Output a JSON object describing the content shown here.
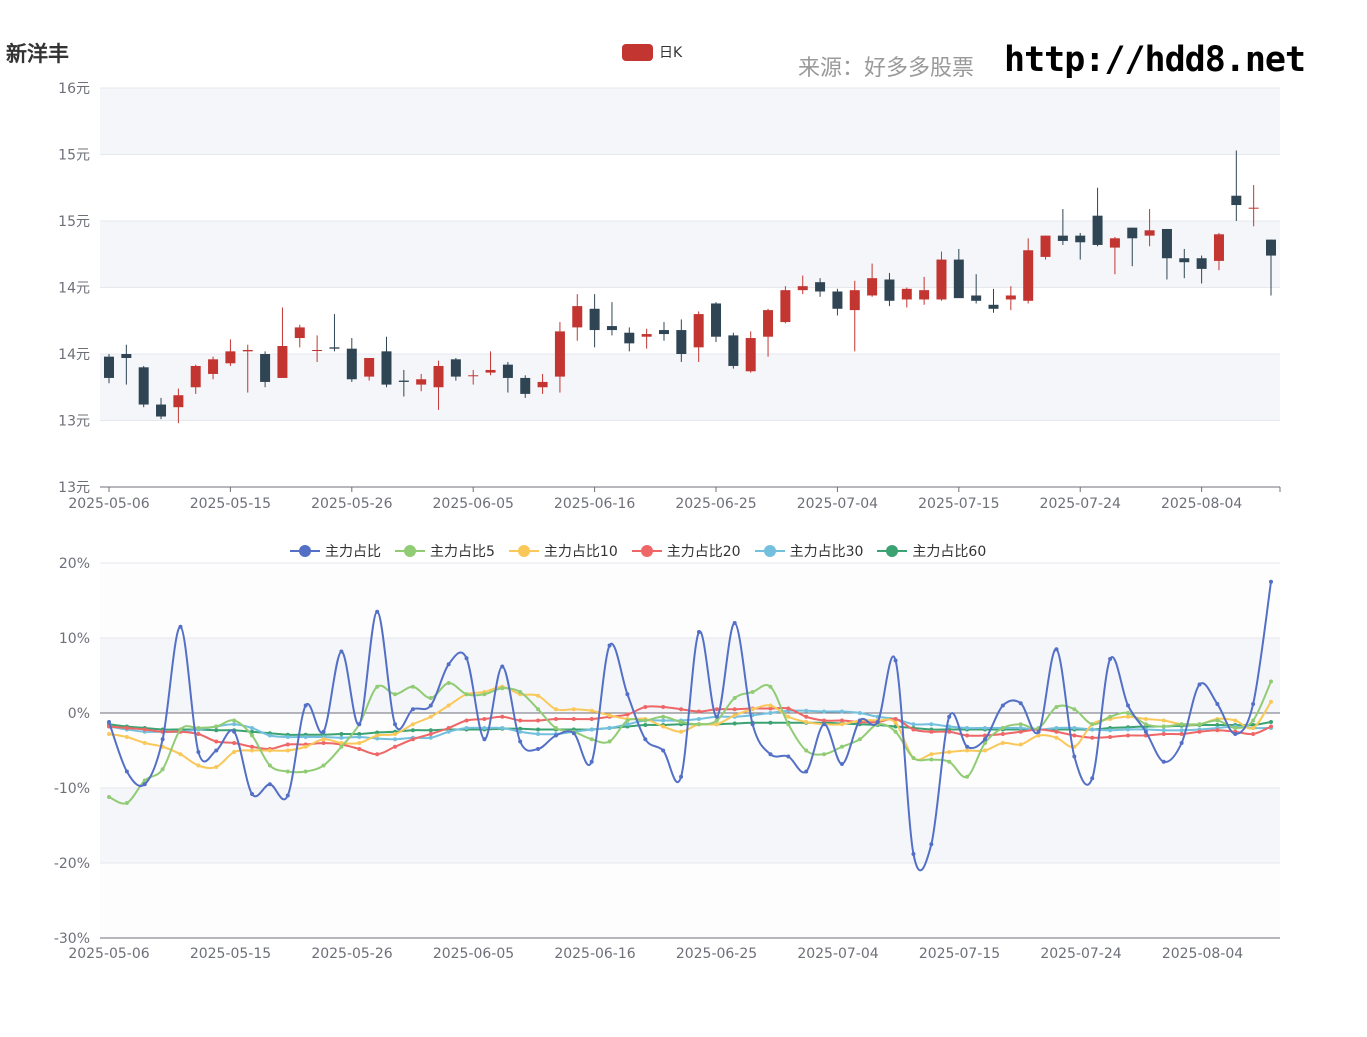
{
  "title": "新洋丰",
  "source_text": "来源：好多多股票",
  "url_text": "http://hdd8.net",
  "colors": {
    "up": "#c23531",
    "down": "#2f4554"
  },
  "kline_legend": "日K",
  "kline_chart": {
    "type": "candlestick",
    "y_ticks": [
      "16元",
      "15元",
      "15元",
      "14元",
      "14元",
      "13元",
      "13元"
    ],
    "y_tick_values": [
      16,
      15.5,
      15,
      14.5,
      14,
      13.5,
      13
    ],
    "ylim": [
      13,
      16
    ],
    "x_ticks": [
      "2025-05-06",
      "2025-05-15",
      "2025-05-26",
      "2025-06-05",
      "2025-06-16",
      "2025-06-25",
      "2025-07-04",
      "2025-07-15",
      "2025-07-24",
      "2025-08-04"
    ],
    "candles": [
      [
        13.98,
        13.82,
        14.0,
        13.78
      ],
      [
        14.0,
        13.97,
        14.07,
        13.77
      ],
      [
        13.9,
        13.62,
        13.91,
        13.6
      ],
      [
        13.62,
        13.53,
        13.67,
        13.51
      ],
      [
        13.6,
        13.69,
        13.74,
        13.48
      ],
      [
        13.75,
        13.91,
        13.92,
        13.7
      ],
      [
        13.85,
        13.96,
        13.98,
        13.81
      ],
      [
        13.93,
        14.02,
        14.11,
        13.91
      ],
      [
        14.02,
        14.03,
        14.07,
        13.71
      ],
      [
        14.0,
        13.79,
        14.02,
        13.75
      ],
      [
        13.82,
        14.06,
        14.35,
        13.82
      ],
      [
        14.12,
        14.2,
        14.22,
        14.05
      ],
      [
        14.03,
        14.03,
        14.14,
        13.94
      ],
      [
        14.05,
        14.04,
        14.3,
        14.02
      ],
      [
        14.04,
        13.81,
        14.12,
        13.79
      ],
      [
        13.83,
        13.97,
        13.97,
        13.8
      ],
      [
        14.02,
        13.77,
        14.13,
        13.75
      ],
      [
        13.8,
        13.79,
        13.88,
        13.68
      ],
      [
        13.77,
        13.81,
        13.85,
        13.72
      ],
      [
        13.75,
        13.91,
        13.95,
        13.58
      ],
      [
        13.96,
        13.83,
        13.97,
        13.8
      ],
      [
        13.84,
        13.84,
        13.88,
        13.77
      ],
      [
        13.86,
        13.88,
        14.02,
        13.84
      ],
      [
        13.92,
        13.82,
        13.94,
        13.71
      ],
      [
        13.82,
        13.7,
        13.84,
        13.67
      ],
      [
        13.75,
        13.79,
        13.85,
        13.7
      ],
      [
        13.83,
        14.17,
        14.24,
        13.71
      ],
      [
        14.2,
        14.36,
        14.45,
        14.1
      ],
      [
        14.34,
        14.18,
        14.45,
        14.05
      ],
      [
        14.21,
        14.18,
        14.39,
        14.14
      ],
      [
        14.16,
        14.08,
        14.2,
        14.02
      ],
      [
        14.13,
        14.15,
        14.19,
        14.04
      ],
      [
        14.18,
        14.15,
        14.24,
        14.1
      ],
      [
        14.18,
        14.0,
        14.26,
        13.94
      ],
      [
        14.05,
        14.3,
        14.32,
        13.94
      ],
      [
        14.38,
        14.13,
        14.39,
        14.09
      ],
      [
        14.14,
        13.91,
        14.16,
        13.89
      ],
      [
        13.87,
        14.12,
        14.17,
        13.86
      ],
      [
        14.13,
        14.33,
        14.34,
        13.98
      ],
      [
        14.24,
        14.48,
        14.51,
        14.23
      ],
      [
        14.48,
        14.51,
        14.59,
        14.45
      ],
      [
        14.54,
        14.47,
        14.57,
        14.43
      ],
      [
        14.47,
        14.34,
        14.49,
        14.29
      ],
      [
        14.33,
        14.48,
        14.55,
        14.02
      ],
      [
        14.44,
        14.57,
        14.68,
        14.43
      ],
      [
        14.56,
        14.4,
        14.61,
        14.36
      ],
      [
        14.41,
        14.49,
        14.5,
        14.35
      ],
      [
        14.41,
        14.48,
        14.58,
        14.37
      ],
      [
        14.41,
        14.71,
        14.77,
        14.4
      ],
      [
        14.71,
        14.42,
        14.79,
        14.43
      ],
      [
        14.44,
        14.4,
        14.6,
        14.38
      ],
      [
        14.37,
        14.34,
        14.49,
        14.31
      ],
      [
        14.41,
        14.44,
        14.51,
        14.33
      ],
      [
        14.4,
        14.78,
        14.87,
        14.38
      ],
      [
        14.73,
        14.89,
        14.89,
        14.71
      ],
      [
        14.89,
        14.85,
        15.09,
        14.82
      ],
      [
        14.89,
        14.84,
        14.91,
        14.71
      ],
      [
        15.04,
        14.82,
        15.25,
        14.81
      ],
      [
        14.8,
        14.87,
        14.88,
        14.6
      ],
      [
        14.95,
        14.87,
        14.95,
        14.66
      ],
      [
        14.89,
        14.93,
        15.09,
        14.81
      ],
      [
        14.94,
        14.72,
        14.94,
        14.56
      ],
      [
        14.72,
        14.69,
        14.79,
        14.57
      ],
      [
        14.72,
        14.64,
        14.74,
        14.53
      ],
      [
        14.7,
        14.9,
        14.91,
        14.63
      ],
      [
        15.19,
        15.12,
        15.53,
        15.0
      ],
      [
        15.1,
        15.1,
        15.27,
        14.96
      ],
      [
        14.86,
        14.74,
        14.86,
        14.44
      ]
    ]
  },
  "flow_legend": [
    "主力占比",
    "主力占比5",
    "主力占比10",
    "主力占比20",
    "主力占比30",
    "主力占比60"
  ],
  "flow_colors": [
    "#5470c6",
    "#91cc75",
    "#fac858",
    "#ee6666",
    "#73c0de",
    "#3ba272"
  ],
  "flow_chart": {
    "type": "line",
    "y_ticks": [
      "20%",
      "10%",
      "0%",
      "-10%",
      "-20%",
      "-30%"
    ],
    "y_tick_values": [
      20,
      10,
      0,
      -10,
      -20,
      -30
    ],
    "ylim": [
      -30,
      20
    ],
    "x_ticks": [
      "2025-05-06",
      "2025-05-15",
      "2025-05-26",
      "2025-06-05",
      "2025-06-16",
      "2025-06-25",
      "2025-07-04",
      "2025-07-15",
      "2025-07-24",
      "2025-08-04"
    ],
    "series": [
      [
        -1.2,
        -7.8,
        -9.5,
        -3.5,
        11.5,
        -5.2,
        -5.0,
        -2.5,
        -10.8,
        -9.5,
        -11.0,
        1.0,
        -2.5,
        8.2,
        -1.5,
        13.5,
        -1.5,
        0.5,
        1.0,
        6.5,
        7.3,
        -3.5,
        6.2,
        -3.8,
        -4.8,
        -3.0,
        -2.7,
        -6.5,
        9.0,
        2.5,
        -3.5,
        -5.0,
        -8.5,
        10.8,
        -0.5,
        12.0,
        -1.5,
        -5.5,
        -5.8,
        -7.8,
        -1.5,
        -6.8,
        -1.0,
        -1.2,
        7.0,
        -18.8,
        -17.5,
        -0.5,
        -4.5,
        -3.5,
        1.0,
        1.3,
        -2.5,
        8.5,
        -5.8,
        -8.7,
        7.2,
        1.0,
        -2.5,
        -6.5,
        -4.0,
        3.8,
        1.2,
        -2.8,
        1.2,
        17.5
      ],
      [
        -11.2,
        -12.0,
        -9.0,
        -7.5,
        -2.2,
        -2.0,
        -1.8,
        -1.0,
        -3.0,
        -7.0,
        -7.8,
        -7.8,
        -7.0,
        -4.5,
        -1.5,
        3.5,
        2.5,
        3.5,
        2.0,
        4.0,
        2.5,
        2.5,
        3.3,
        2.8,
        0.5,
        -2.0,
        -2.5,
        -3.5,
        -3.8,
        -1.0,
        -1.0,
        -0.5,
        -1.2,
        -1.5,
        -1.0,
        2.0,
        2.8,
        3.5,
        -1.5,
        -5.0,
        -5.5,
        -4.5,
        -3.5,
        -1.5,
        -2.5,
        -6.0,
        -6.2,
        -6.5,
        -8.5,
        -4.0,
        -2.0,
        -1.5,
        -2.0,
        0.8,
        0.5,
        -1.5,
        -0.5,
        0.0,
        -1.5,
        -1.8,
        -1.5,
        -1.5,
        -1.0,
        -2.0,
        -1.0,
        4.2
      ],
      [
        -2.8,
        -3.2,
        -4.0,
        -4.5,
        -5.5,
        -7.0,
        -7.2,
        -5.2,
        -5.0,
        -5.0,
        -5.0,
        -4.5,
        -3.5,
        -4.0,
        -4.0,
        -3.0,
        -2.8,
        -1.5,
        -0.5,
        1.0,
        2.5,
        2.8,
        3.5,
        2.5,
        2.3,
        0.5,
        0.5,
        0.3,
        -0.3,
        -0.8,
        -0.8,
        -1.8,
        -2.5,
        -1.5,
        -1.5,
        -0.3,
        0.5,
        1.0,
        -0.5,
        -1.2,
        -1.5,
        -1.5,
        -1.0,
        -1.0,
        -1.3,
        -6.0,
        -5.5,
        -5.2,
        -5.0,
        -5.0,
        -4.0,
        -4.2,
        -3.0,
        -3.3,
        -4.5,
        -1.5,
        -0.8,
        -0.5,
        -0.8,
        -1.0,
        -1.5,
        -1.5,
        -0.8,
        -1.0,
        -2.0,
        1.5
      ],
      [
        -1.8,
        -2.0,
        -2.2,
        -2.5,
        -2.5,
        -2.8,
        -3.8,
        -4.0,
        -4.5,
        -4.8,
        -4.2,
        -4.2,
        -4.0,
        -4.2,
        -4.8,
        -5.5,
        -4.5,
        -3.5,
        -2.8,
        -2.0,
        -1.0,
        -0.8,
        -0.5,
        -1.0,
        -1.0,
        -0.8,
        -0.8,
        -0.8,
        -0.5,
        -0.2,
        0.8,
        0.8,
        0.5,
        0.2,
        0.5,
        0.5,
        0.6,
        0.6,
        0.6,
        -0.5,
        -1.0,
        -1.0,
        -1.2,
        -1.2,
        -0.8,
        -2.2,
        -2.5,
        -2.5,
        -3.0,
        -3.0,
        -2.8,
        -2.5,
        -2.2,
        -2.5,
        -3.0,
        -3.3,
        -3.2,
        -3.0,
        -3.0,
        -2.8,
        -2.8,
        -2.5,
        -2.3,
        -2.5,
        -2.8,
        -1.8
      ],
      [
        -1.8,
        -2.2,
        -2.5,
        -2.5,
        -2.5,
        -2.2,
        -1.8,
        -1.5,
        -2.0,
        -3.0,
        -3.2,
        -3.2,
        -3.2,
        -3.3,
        -3.2,
        -3.4,
        -3.5,
        -3.3,
        -3.3,
        -2.5,
        -2.0,
        -2.0,
        -2.0,
        -2.5,
        -2.8,
        -2.8,
        -2.5,
        -2.2,
        -2.0,
        -1.5,
        -1.0,
        -1.0,
        -1.0,
        -0.8,
        -0.5,
        -0.5,
        -0.3,
        0.0,
        0.3,
        0.3,
        0.2,
        0.2,
        0.0,
        -0.5,
        -0.8,
        -1.5,
        -1.5,
        -1.8,
        -2.0,
        -2.0,
        -2.0,
        -2.0,
        -2.2,
        -2.0,
        -2.0,
        -2.2,
        -2.3,
        -2.2,
        -2.2,
        -2.3,
        -2.3,
        -2.2,
        -2.0,
        -1.8,
        -2.0,
        -2.0
      ],
      [
        -1.5,
        -1.8,
        -2.0,
        -2.2,
        -2.2,
        -2.2,
        -2.3,
        -2.3,
        -2.5,
        -2.7,
        -2.9,
        -2.9,
        -2.9,
        -2.8,
        -2.8,
        -2.6,
        -2.5,
        -2.3,
        -2.3,
        -2.2,
        -2.2,
        -2.2,
        -2.1,
        -2.1,
        -2.2,
        -2.2,
        -2.2,
        -2.2,
        -2.0,
        -1.8,
        -1.6,
        -1.6,
        -1.5,
        -1.5,
        -1.5,
        -1.4,
        -1.3,
        -1.3,
        -1.3,
        -1.3,
        -1.3,
        -1.4,
        -1.5,
        -1.6,
        -1.8,
        -2.0,
        -2.2,
        -2.2,
        -2.2,
        -2.2,
        -2.2,
        -2.2,
        -2.2,
        -2.2,
        -2.2,
        -2.2,
        -2.0,
        -1.9,
        -1.8,
        -1.8,
        -1.7,
        -1.6,
        -1.6,
        -1.6,
        -1.6,
        -1.2
      ]
    ]
  }
}
